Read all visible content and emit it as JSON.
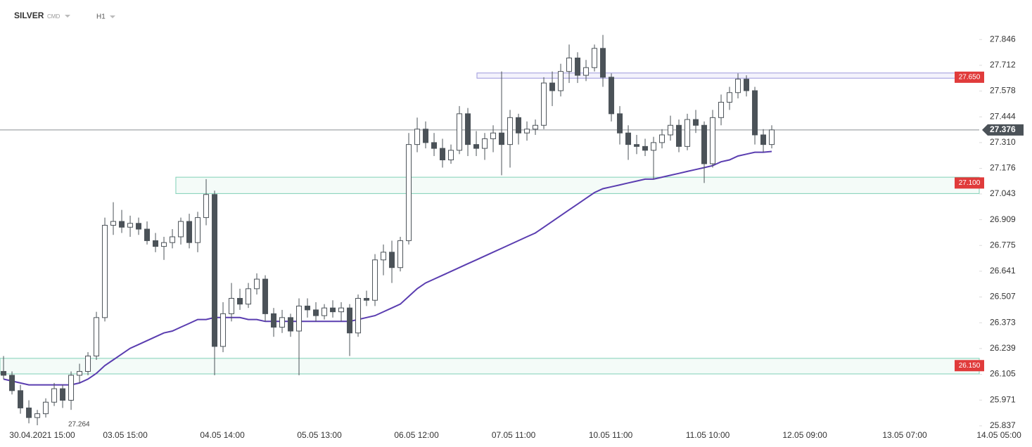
{
  "chart_data": {
    "type": "candlestick",
    "title": "SILVER",
    "instrument_class": "CMD",
    "interval": "H1",
    "xlim": [
      -0.42,
      119.58
    ],
    "xticks": [
      {
        "value": 4.58,
        "label": "30.04.2021 15:00"
      },
      {
        "value": 14.42,
        "label": "03.05 15:00"
      },
      {
        "value": 25.92,
        "label": "04.05 14:00"
      },
      {
        "value": 37.42,
        "label": "05.05 13:00"
      },
      {
        "value": 48.92,
        "label": "06.05 12:00"
      },
      {
        "value": 60.42,
        "label": "07.05 11:00"
      },
      {
        "value": 71.92,
        "label": "10.05 11:00"
      },
      {
        "value": 83.42,
        "label": "11.05 10:00"
      },
      {
        "value": 94.92,
        "label": "12.05 09:00"
      },
      {
        "value": 106.75,
        "label": "13.05 07:00"
      },
      {
        "value": 117.92,
        "label": "14.05 05:00"
      }
    ],
    "ylim": [
      25.8,
      27.92
    ],
    "yticks": [
      27.846,
      27.712,
      27.578,
      27.444,
      {
        "value": 27.31,
        "label": "27.310"
      },
      27.176,
      27.043,
      26.909,
      26.775,
      26.641,
      26.507,
      26.373,
      26.239,
      26.105,
      25.971,
      25.837
    ],
    "up_color": "#ffffff",
    "down_color": "#4b5258",
    "candles": {
      "open": [
        26.12,
        26.1,
        26.02,
        25.93,
        25.88,
        25.9,
        25.96,
        26.03,
        25.97,
        26.1,
        26.12,
        26.2,
        26.4,
        26.88,
        26.9,
        26.87,
        26.89,
        26.86,
        26.8,
        26.77,
        26.79,
        26.82,
        26.9,
        26.79,
        26.92,
        27.04,
        26.25,
        26.42,
        26.5,
        26.47,
        26.55,
        26.6,
        26.42,
        26.35,
        26.4,
        26.33,
        26.46,
        26.44,
        26.41,
        26.45,
        26.43,
        26.45,
        26.32,
        26.5,
        26.49,
        26.7,
        26.74,
        26.66,
        26.8,
        27.3,
        27.38,
        27.31,
        27.28,
        27.22,
        27.27,
        27.46,
        27.3,
        27.28,
        27.33,
        27.36,
        27.3,
        27.44,
        27.36,
        27.38,
        27.4,
        27.62,
        27.58,
        27.68,
        27.75,
        27.66,
        27.7,
        27.8,
        27.65,
        27.46,
        27.36,
        27.3,
        27.29,
        27.27,
        27.31,
        27.35,
        27.4,
        27.29,
        27.43,
        27.4,
        27.2,
        27.44,
        27.52,
        27.57,
        27.64,
        27.58,
        27.35,
        27.3
      ],
      "high": [
        26.2,
        26.12,
        26.05,
        25.97,
        25.92,
        25.98,
        26.06,
        26.05,
        26.12,
        26.16,
        26.22,
        26.43,
        26.92,
        27.0,
        26.96,
        26.93,
        26.92,
        26.9,
        26.84,
        26.82,
        26.86,
        26.92,
        26.94,
        26.95,
        27.12,
        27.06,
        26.48,
        26.58,
        26.55,
        26.58,
        26.63,
        26.62,
        26.45,
        26.44,
        26.42,
        26.5,
        26.5,
        26.48,
        26.47,
        26.49,
        26.48,
        26.47,
        26.52,
        26.54,
        26.73,
        26.78,
        26.8,
        26.82,
        27.36,
        27.44,
        27.42,
        27.36,
        27.33,
        27.3,
        27.5,
        27.49,
        27.37,
        27.36,
        27.4,
        27.68,
        27.48,
        27.46,
        27.42,
        27.43,
        27.65,
        27.68,
        27.72,
        27.82,
        27.78,
        27.74,
        27.82,
        27.87,
        27.67,
        27.5,
        27.4,
        27.35,
        27.33,
        27.34,
        27.38,
        27.45,
        27.43,
        27.46,
        27.48,
        27.42,
        27.48,
        27.56,
        27.6,
        27.67,
        27.66,
        27.6,
        27.38,
        27.4
      ],
      "low": [
        26.08,
        26.0,
        25.9,
        25.85,
        25.84,
        25.88,
        25.94,
        25.93,
        25.92,
        26.06,
        26.1,
        26.18,
        26.38,
        26.83,
        26.84,
        26.82,
        26.83,
        26.78,
        26.74,
        26.7,
        26.76,
        26.78,
        26.76,
        26.74,
        26.88,
        26.1,
        26.22,
        26.38,
        26.44,
        26.45,
        26.52,
        26.38,
        26.3,
        26.32,
        26.3,
        26.1,
        26.4,
        26.38,
        26.39,
        26.4,
        26.38,
        26.2,
        26.3,
        26.46,
        26.46,
        26.62,
        26.58,
        26.64,
        26.78,
        27.26,
        27.28,
        27.24,
        27.18,
        27.2,
        27.25,
        27.24,
        27.24,
        27.22,
        27.26,
        27.14,
        27.18,
        27.3,
        27.32,
        27.35,
        27.38,
        27.5,
        27.55,
        27.62,
        27.62,
        27.63,
        27.68,
        27.6,
        27.42,
        27.3,
        27.22,
        27.25,
        27.24,
        27.12,
        27.28,
        27.32,
        27.26,
        27.27,
        27.36,
        27.1,
        27.18,
        27.4,
        27.48,
        27.54,
        27.55,
        27.3,
        27.26,
        27.28
      ],
      "close": [
        26.1,
        26.02,
        25.93,
        25.88,
        25.9,
        25.96,
        26.03,
        25.97,
        26.1,
        26.12,
        26.2,
        26.4,
        26.88,
        26.9,
        26.87,
        26.89,
        26.86,
        26.8,
        26.77,
        26.79,
        26.82,
        26.9,
        26.79,
        26.92,
        27.04,
        26.25,
        26.42,
        26.5,
        26.47,
        26.55,
        26.6,
        26.42,
        26.35,
        26.4,
        26.33,
        26.46,
        26.44,
        26.41,
        26.45,
        26.43,
        26.45,
        26.32,
        26.5,
        26.49,
        26.7,
        26.74,
        26.66,
        26.8,
        27.3,
        27.38,
        27.31,
        27.28,
        27.22,
        27.27,
        27.46,
        27.3,
        27.28,
        27.33,
        27.36,
        27.3,
        27.44,
        27.36,
        27.38,
        27.4,
        27.62,
        27.58,
        27.68,
        27.75,
        27.66,
        27.7,
        27.8,
        27.65,
        27.46,
        27.36,
        27.3,
        27.29,
        27.27,
        27.31,
        27.35,
        27.4,
        27.29,
        27.43,
        27.4,
        27.2,
        27.44,
        27.52,
        27.57,
        27.64,
        27.58,
        27.35,
        27.3,
        27.376
      ]
    },
    "moving_average": {
      "color": "#5a3db0",
      "values": [
        26.08,
        26.07,
        26.06,
        26.05,
        26.05,
        26.05,
        26.05,
        26.05,
        26.05,
        26.06,
        26.08,
        26.11,
        26.15,
        26.18,
        26.21,
        26.24,
        26.26,
        26.28,
        26.3,
        26.32,
        26.33,
        26.35,
        26.37,
        26.39,
        26.39,
        26.4,
        26.4,
        26.4,
        26.4,
        26.39,
        26.39,
        26.38,
        26.38,
        26.38,
        26.38,
        26.38,
        26.38,
        26.38,
        26.38,
        26.38,
        26.38,
        26.38,
        26.39,
        26.4,
        26.41,
        26.43,
        26.45,
        26.47,
        26.51,
        26.55,
        26.58,
        26.6,
        26.62,
        26.64,
        26.66,
        26.68,
        26.7,
        26.72,
        26.74,
        26.76,
        26.78,
        26.8,
        26.82,
        26.84,
        26.87,
        26.9,
        26.93,
        26.96,
        26.99,
        27.02,
        27.05,
        27.07,
        27.08,
        27.09,
        27.1,
        27.11,
        27.12,
        27.12,
        27.13,
        27.14,
        27.15,
        27.16,
        27.17,
        27.18,
        27.19,
        27.21,
        27.22,
        27.24,
        27.25,
        27.26,
        27.26,
        27.264
      ]
    },
    "zones": [
      {
        "level": {
          "value": 27.65,
          "label": "27.650"
        },
        "low": 27.645,
        "high": 27.672,
        "start": 56.08,
        "color": "#9b97dc",
        "fill": "#f4f3fc"
      },
      {
        "level": {
          "value": 27.1,
          "label": "27.100"
        },
        "low": 27.045,
        "high": 27.13,
        "start": 20.41,
        "color": "#7fd0b6",
        "fill": "#f4fbf8"
      },
      {
        "level": {
          "value": 26.15,
          "label": "26.150"
        },
        "low": 26.107,
        "high": 26.188,
        "start": -0.42,
        "color": "#7fd0b6",
        "fill": "#f4fbf8"
      }
    ],
    "zone_label_color": "#e03b3b",
    "price_line_color": "#8a8f94"
  }
}
